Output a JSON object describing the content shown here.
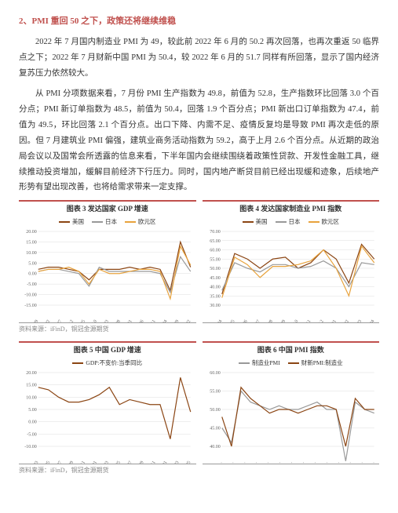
{
  "section": {
    "title": "2、PMI 重回 50 之下，政策还将继续维稳"
  },
  "paragraphs": [
    "2022 年 7 月国内制造业 PMI 为 49，较此前 2022 年 6 月的 50.2 再次回落，也再次重返 50 临界点之下；2022 年 7 月财新中国 PMI 为 50.4，较 2022 年 6 月的 51.7 同样有所回落，显示了国内经济复苏压力依然较大。",
    "从 PMI 分项数据来看，7 月份 PMI 生产指数为 49.8，前值为 52.8，生产指数环比回落 3.0 个百分点；PMI 新订单指数为 48.5，前值为 50.4，回落 1.9 个百分点；PMI 新出口订单指数为 47.4，前值为 49.5，环比回落 2.1 个百分点。出口下降、内需不足、疫情反复均是导致 PMI 再次走低的原因。但 7 月建筑业 PMI 偏强，建筑业商务活动指数为 59.2，高于上月 2.6 个百分点。从近期的政治局会议以及国常会所透露的信息来看，下半年国内会继续围绕着政策性贷款、开发性金融工具，继续推动投资增加，缓解目前经济下行压力。同时，国内地产断贷目前已经出现缓和迹象，后续地产形势有望出现改善，也将给需求带来一定支撑。"
  ],
  "charts": [
    {
      "title": "图表 3 发达国家 GDP 增速",
      "legend": [
        {
          "label": "美国",
          "color": "#8b4513"
        },
        {
          "label": "日本",
          "color": "#999999"
        },
        {
          "label": "欧元区",
          "color": "#e8a33d"
        }
      ],
      "ylim": [
        -15,
        20
      ],
      "yticks": [
        -15,
        -10,
        -5,
        0,
        5,
        10,
        15,
        20
      ],
      "xticks": [
        "2002/09",
        "2004/02",
        "2005/07",
        "2006/12",
        "2008/05",
        "2009/10",
        "2011/03",
        "2012/08",
        "2014/01",
        "2015/06",
        "2016/11",
        "2018/04",
        "2019/09",
        "2021/02"
      ],
      "series": [
        {
          "color": "#8b4513",
          "data": [
            2,
            3,
            3,
            2,
            1,
            -3,
            2,
            2,
            2,
            3,
            2,
            3,
            2,
            -8,
            15,
            3
          ]
        },
        {
          "color": "#999999",
          "data": [
            1,
            2,
            2,
            1,
            0,
            -6,
            3,
            1,
            1,
            1,
            1,
            1,
            0,
            -9,
            8,
            1
          ]
        },
        {
          "color": "#e8a33d",
          "data": [
            1,
            2,
            2,
            3,
            1,
            -5,
            2,
            0,
            0,
            1,
            2,
            2,
            1,
            -12,
            13,
            4
          ]
        }
      ],
      "source": "资料来源：iFinD，铜冠金源期货"
    },
    {
      "title": "图表 4 发达国家制造业 PMI 指数",
      "legend": [
        {
          "label": "美国",
          "color": "#8b4513"
        },
        {
          "label": "日本",
          "color": "#999999"
        },
        {
          "label": "欧元区",
          "color": "#e8a33d"
        }
      ],
      "ylim": [
        30,
        70
      ],
      "yticks": [
        30,
        35,
        40,
        45,
        50,
        55,
        60,
        65,
        70
      ],
      "xticks": [
        "2009-04",
        "2010-05",
        "2011-06",
        "2012-07",
        "2013-08",
        "2014-09",
        "2015-10",
        "2016-11",
        "2017-12",
        "2019-01",
        "2020-02",
        "2021-03",
        "2022-04"
      ],
      "series": [
        {
          "color": "#8b4513",
          "data": [
            36,
            58,
            55,
            50,
            55,
            56,
            50,
            53,
            60,
            55,
            42,
            63,
            55
          ]
        },
        {
          "color": "#999999",
          "data": [
            38,
            53,
            50,
            48,
            52,
            52,
            50,
            51,
            54,
            50,
            40,
            53,
            52
          ]
        },
        {
          "color": "#e8a33d",
          "data": [
            34,
            56,
            52,
            45,
            51,
            51,
            52,
            54,
            60,
            50,
            35,
            62,
            53
          ]
        }
      ],
      "source": ""
    },
    {
      "title": "图表 5 中国 GDP 增速",
      "legend": [
        {
          "label": "GDP:不变价:当季同比",
          "color": "#8b4513"
        }
      ],
      "ylim": [
        -10,
        20
      ],
      "yticks": [
        -10,
        -5,
        0,
        5,
        10,
        15,
        20
      ],
      "xticks": [
        "1992-03",
        "1994-05",
        "1996-07",
        "1998-09",
        "2000-11",
        "2003-01",
        "2005-03",
        "2007-05",
        "2009-07",
        "2011-09",
        "2013-11",
        "2016-01",
        "2018-03",
        "2020-05"
      ],
      "series": [
        {
          "color": "#8b4513",
          "data": [
            14,
            13,
            10,
            8,
            8,
            9,
            11,
            14,
            7,
            9,
            8,
            7,
            7,
            -7,
            18,
            4
          ]
        }
      ],
      "source": "资料来源：iFinD，铜冠金源期货"
    },
    {
      "title": "图表 6 中国 PMI 指数",
      "legend": [
        {
          "label": "制造业PMI",
          "color": "#999999"
        },
        {
          "label": "财新PMI:制造业",
          "color": "#8b4513"
        }
      ],
      "ylim": [
        40,
        60
      ],
      "yticks": [
        40,
        45,
        50,
        55,
        60
      ],
      "xticks": [
        "2008…",
        "2009…",
        "2010…",
        "2011…",
        "2012…",
        "2013…",
        "2014…",
        "2015…",
        "2016…",
        "2017…",
        "2018…",
        "2019…",
        "2020…",
        "2021…"
      ],
      "series": [
        {
          "color": "#999999",
          "data": [
            45,
            41,
            55,
            52,
            51,
            50,
            51,
            50,
            50,
            51,
            52,
            50,
            50,
            36,
            52,
            50,
            49
          ]
        },
        {
          "color": "#8b4513",
          "data": [
            48,
            40,
            56,
            53,
            51,
            49,
            50,
            50,
            49,
            50,
            51,
            51,
            50,
            40,
            53,
            50,
            50
          ]
        }
      ],
      "source": ""
    }
  ]
}
